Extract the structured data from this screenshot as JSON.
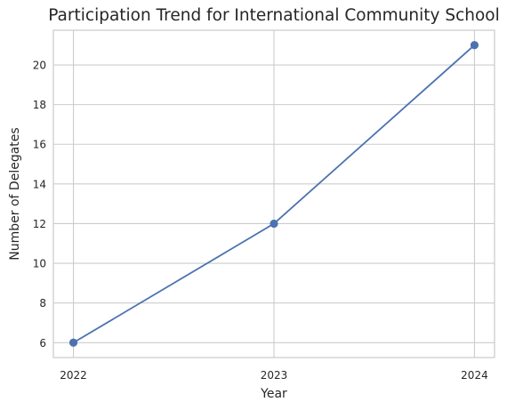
{
  "chart_data": {
    "type": "line",
    "title": "Participation Trend for International Community School",
    "xlabel": "Year",
    "ylabel": "Number of Delegates",
    "x": [
      "2022",
      "2023",
      "2024"
    ],
    "series": [
      {
        "values": [
          6,
          12,
          21
        ],
        "color": "#4c72b0",
        "marker": "circle"
      }
    ],
    "yticks": [
      6,
      8,
      10,
      12,
      14,
      16,
      18,
      20
    ],
    "ylim": [
      5.25,
      21.75
    ],
    "grid": true,
    "legend": "none"
  }
}
